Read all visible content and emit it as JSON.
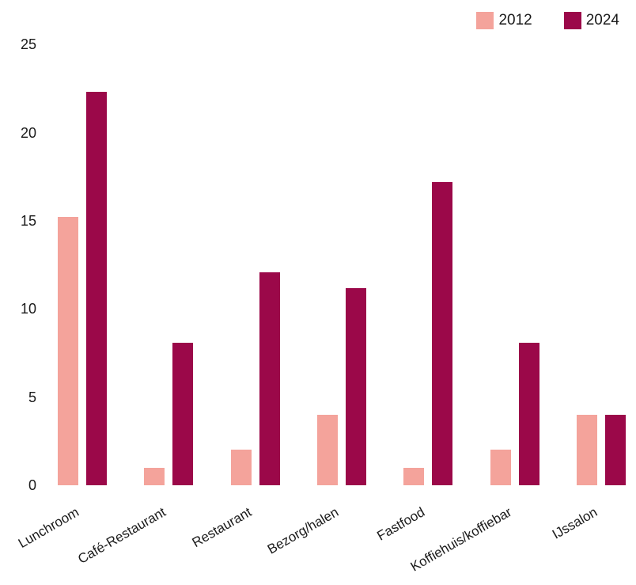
{
  "chart_data": {
    "type": "bar",
    "orientation": "vertical",
    "grouped": true,
    "title": "",
    "xlabel": "",
    "ylabel": "",
    "categories": [
      "Lunchroom",
      "Café-Restaurant",
      "Restaurant",
      "Bezorg/halen",
      "Fastfood",
      "Koffiehuis/koffiebar",
      "IJssalon"
    ],
    "series": [
      {
        "name": "2012",
        "color": "#F4A39B",
        "values": [
          15.2,
          1.0,
          2.0,
          4.0,
          1.0,
          2.0,
          4.0
        ]
      },
      {
        "name": "2024",
        "color": "#9B0849",
        "values": [
          22.3,
          8.1,
          12.1,
          11.2,
          17.2,
          8.1,
          4.0
        ]
      }
    ],
    "ylim": [
      0,
      25
    ],
    "yticks": [
      0,
      5,
      10,
      15,
      20,
      25
    ],
    "grid": false,
    "legend_position": "top-right",
    "background_color": "#ffffff",
    "text_color": "#1a1a1a"
  }
}
